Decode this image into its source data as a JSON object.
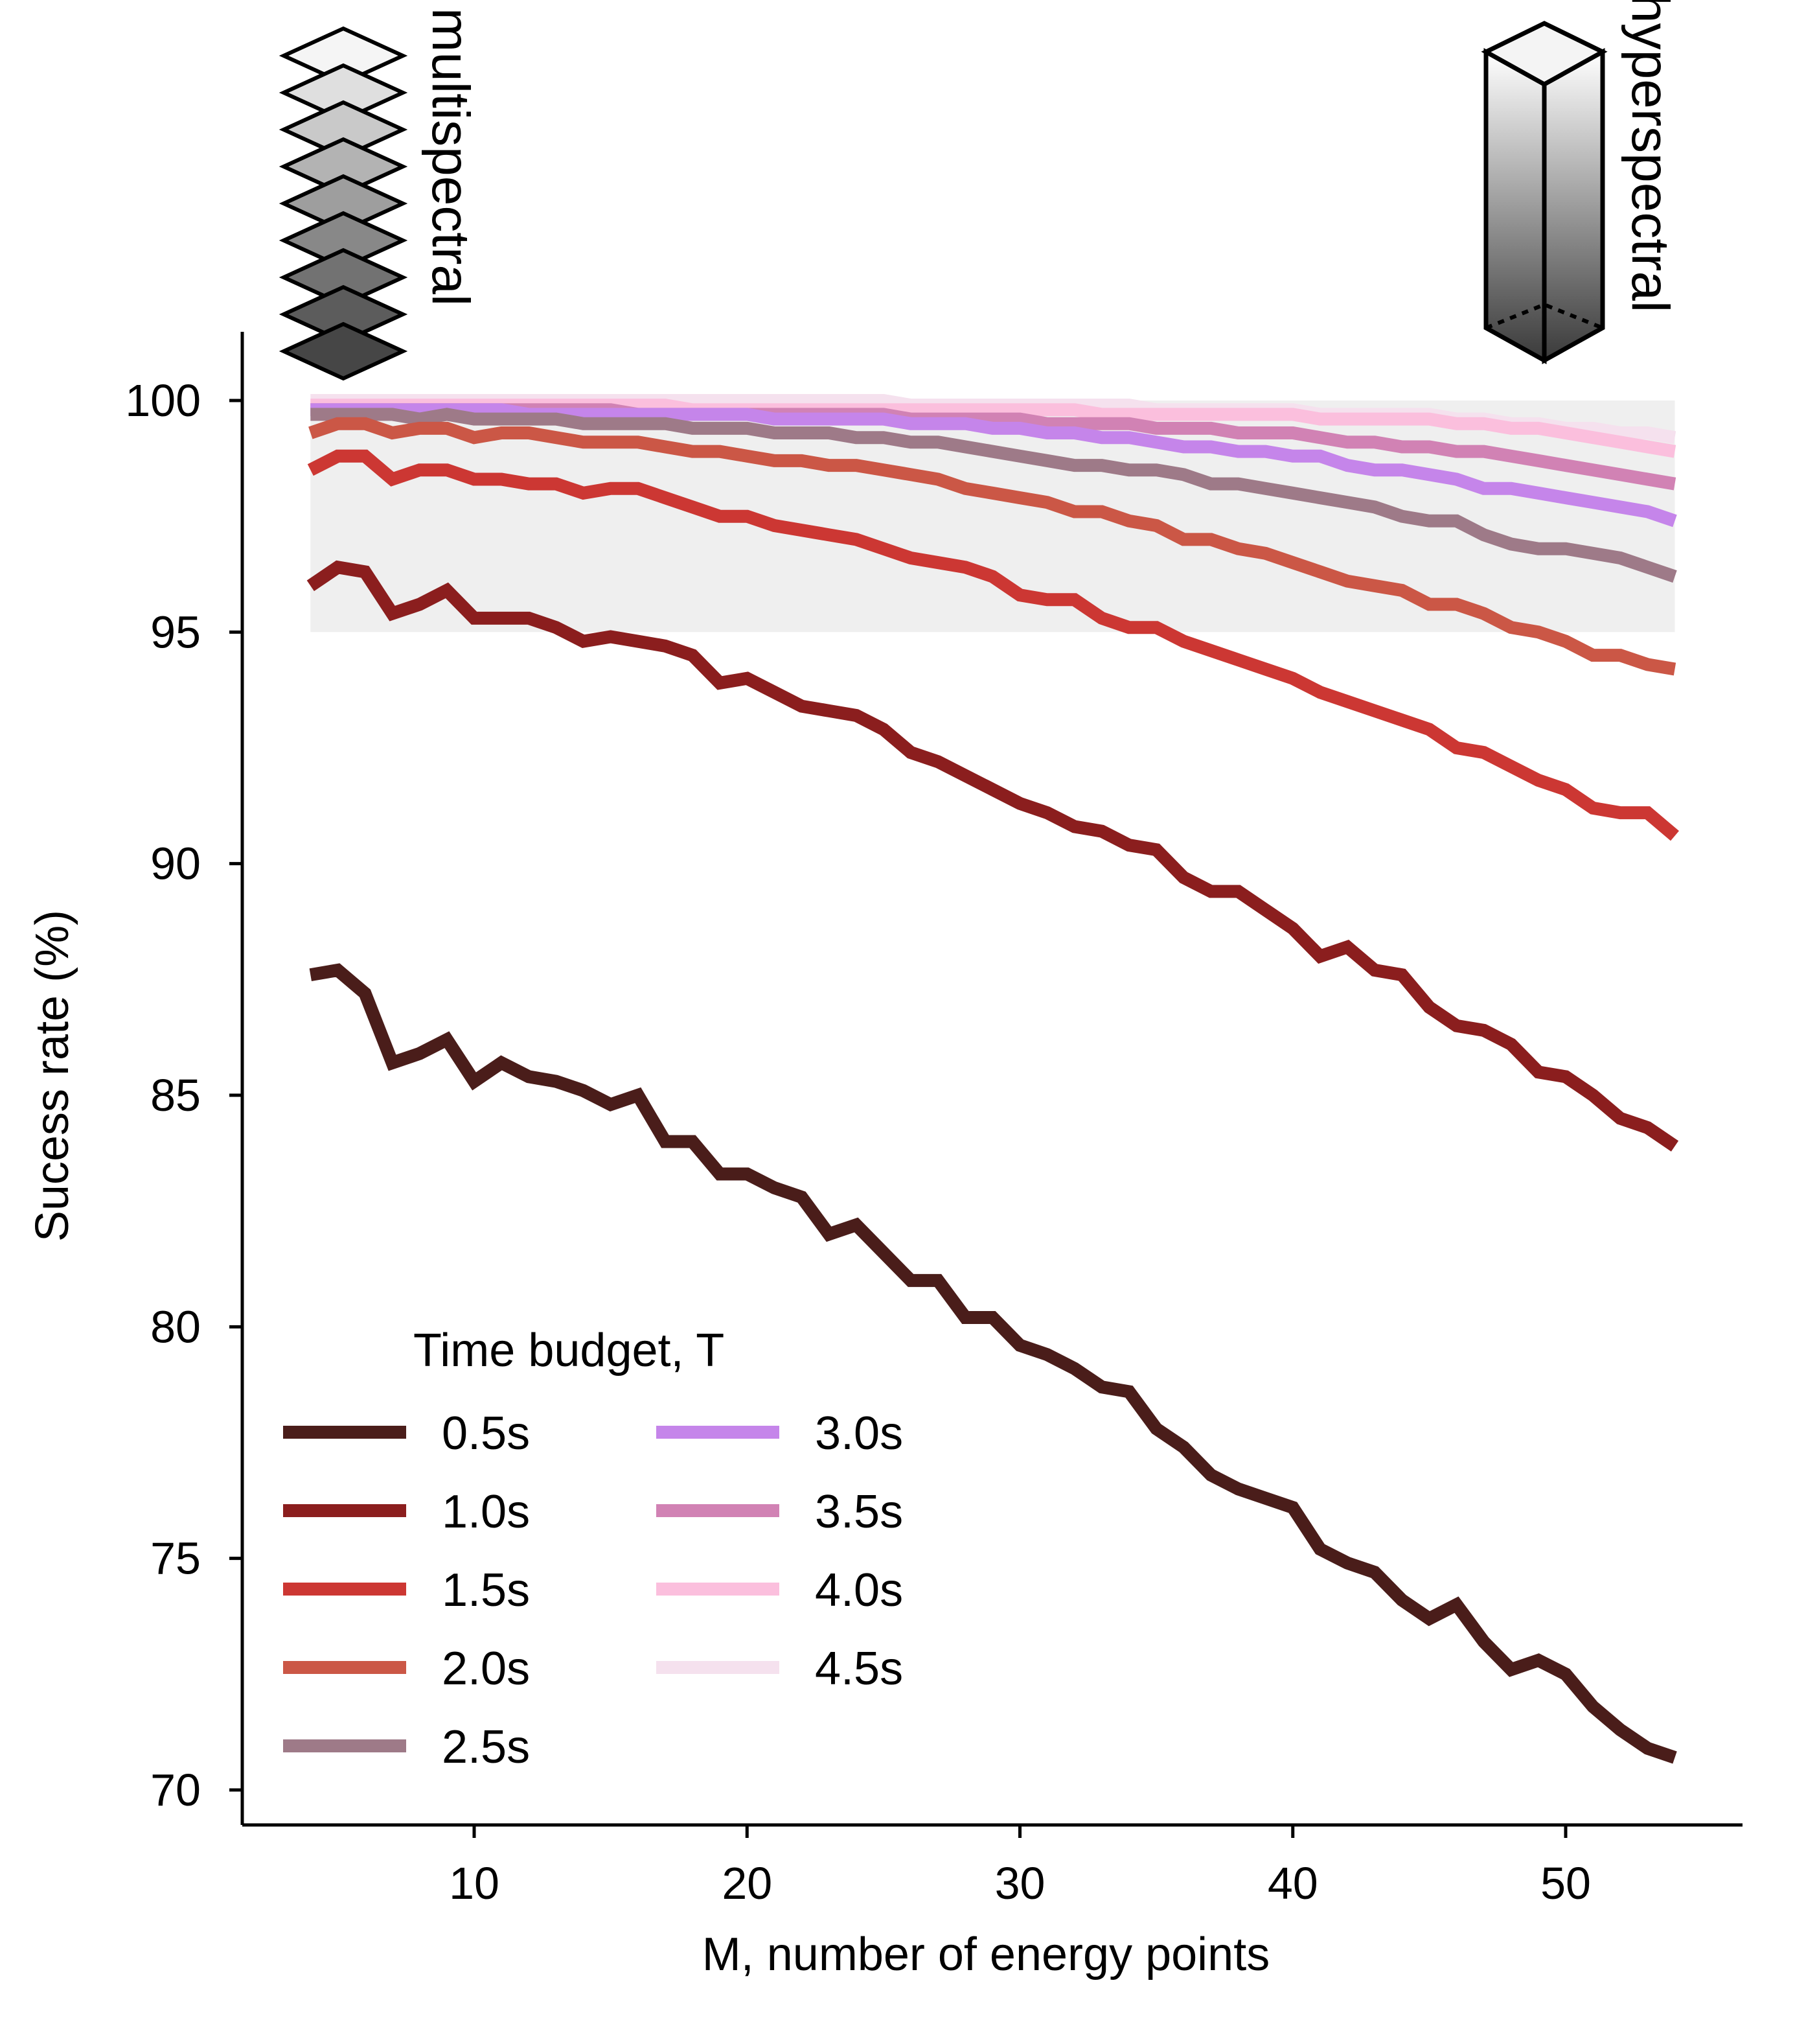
{
  "chart_data": {
    "type": "line",
    "xlabel": "M, number  of energy points",
    "ylabel": "Sucess rate  (%)",
    "xlim": [
      1.5,
      57
    ],
    "ylim": [
      69.3,
      101.5
    ],
    "xticks": [
      10,
      20,
      30,
      40,
      50
    ],
    "yticks": [
      70,
      75,
      80,
      85,
      90,
      95,
      100
    ],
    "grid": false,
    "shaded_band": {
      "y_from": 95,
      "y_to": 100,
      "color": "#efefef"
    },
    "annotations": {
      "left": "multispectral",
      "right": "hyperspectral"
    },
    "legend": {
      "title": "Time budget,  T",
      "placement": "bottom-left"
    },
    "x": [
      4,
      5,
      6,
      7,
      8,
      9,
      10,
      11,
      12,
      13,
      14,
      15,
      16,
      17,
      18,
      19,
      20,
      21,
      22,
      23,
      24,
      25,
      26,
      27,
      28,
      29,
      30,
      31,
      32,
      33,
      34,
      35,
      36,
      37,
      38,
      39,
      40,
      41,
      42,
      43,
      44,
      45,
      46,
      47,
      48,
      49,
      50,
      51,
      52,
      53,
      54
    ],
    "series": [
      {
        "name": "0.5s",
        "color": "#4a1d1a",
        "values": [
          87.6,
          87.7,
          87.2,
          85.7,
          85.9,
          86.2,
          85.3,
          85.7,
          85.4,
          85.3,
          85.1,
          84.8,
          85.0,
          84.0,
          84.0,
          83.3,
          83.3,
          83.0,
          82.8,
          82.0,
          82.2,
          81.6,
          81.0,
          81.0,
          80.2,
          80.2,
          79.6,
          79.4,
          79.1,
          78.7,
          78.6,
          77.8,
          77.4,
          76.8,
          76.5,
          76.3,
          76.1,
          75.2,
          74.9,
          74.7,
          74.1,
          73.7,
          74.0,
          73.2,
          72.6,
          72.8,
          72.5,
          71.8,
          71.3,
          70.9,
          70.7
        ]
      },
      {
        "name": "1.0s",
        "color": "#8b1e1e",
        "values": [
          96.0,
          96.4,
          96.3,
          95.4,
          95.6,
          95.9,
          95.3,
          95.3,
          95.3,
          95.1,
          94.8,
          94.9,
          94.8,
          94.7,
          94.5,
          93.9,
          94.0,
          93.7,
          93.4,
          93.3,
          93.2,
          92.9,
          92.4,
          92.2,
          91.9,
          91.6,
          91.3,
          91.1,
          90.8,
          90.7,
          90.4,
          90.3,
          89.7,
          89.4,
          89.4,
          89.0,
          88.6,
          88.0,
          88.2,
          87.7,
          87.6,
          86.9,
          86.5,
          86.4,
          86.1,
          85.5,
          85.4,
          85.0,
          84.5,
          84.3,
          83.9
        ]
      },
      {
        "name": "1.5s",
        "color": "#cc3733",
        "values": [
          98.5,
          98.8,
          98.8,
          98.3,
          98.5,
          98.5,
          98.3,
          98.3,
          98.2,
          98.2,
          98.0,
          98.1,
          98.1,
          97.9,
          97.7,
          97.5,
          97.5,
          97.3,
          97.2,
          97.1,
          97.0,
          96.8,
          96.6,
          96.5,
          96.4,
          96.2,
          95.8,
          95.7,
          95.7,
          95.3,
          95.1,
          95.1,
          94.8,
          94.6,
          94.4,
          94.2,
          94.0,
          93.7,
          93.5,
          93.3,
          93.1,
          92.9,
          92.5,
          92.4,
          92.1,
          91.8,
          91.6,
          91.2,
          91.1,
          91.1,
          90.6
        ]
      },
      {
        "name": "2.0s",
        "color": "#cb5746",
        "values": [
          99.3,
          99.5,
          99.5,
          99.3,
          99.4,
          99.4,
          99.2,
          99.3,
          99.3,
          99.2,
          99.1,
          99.1,
          99.1,
          99.0,
          98.9,
          98.9,
          98.8,
          98.7,
          98.7,
          98.6,
          98.6,
          98.5,
          98.4,
          98.3,
          98.1,
          98.0,
          97.9,
          97.8,
          97.6,
          97.6,
          97.4,
          97.3,
          97.0,
          97.0,
          96.8,
          96.7,
          96.5,
          96.3,
          96.1,
          96.0,
          95.9,
          95.6,
          95.6,
          95.4,
          95.1,
          95.0,
          94.8,
          94.5,
          94.5,
          94.3,
          94.2
        ]
      },
      {
        "name": "2.5s",
        "color": "#9e7a88",
        "values": [
          99.7,
          99.7,
          99.7,
          99.7,
          99.6,
          99.7,
          99.6,
          99.6,
          99.6,
          99.6,
          99.5,
          99.5,
          99.5,
          99.5,
          99.4,
          99.4,
          99.4,
          99.3,
          99.3,
          99.3,
          99.2,
          99.2,
          99.1,
          99.1,
          99.0,
          98.9,
          98.8,
          98.7,
          98.6,
          98.6,
          98.5,
          98.5,
          98.4,
          98.2,
          98.2,
          98.1,
          98.0,
          97.9,
          97.8,
          97.7,
          97.5,
          97.4,
          97.4,
          97.1,
          96.9,
          96.8,
          96.8,
          96.7,
          96.6,
          96.4,
          96.2
        ]
      },
      {
        "name": "3.0s",
        "color": "#c585ea",
        "values": [
          99.8,
          99.8,
          99.8,
          99.8,
          99.8,
          99.8,
          99.8,
          99.8,
          99.7,
          99.7,
          99.7,
          99.7,
          99.7,
          99.7,
          99.7,
          99.7,
          99.7,
          99.6,
          99.6,
          99.6,
          99.6,
          99.6,
          99.5,
          99.5,
          99.5,
          99.4,
          99.4,
          99.3,
          99.3,
          99.2,
          99.2,
          99.1,
          99.0,
          99.0,
          98.9,
          98.9,
          98.8,
          98.8,
          98.6,
          98.5,
          98.5,
          98.4,
          98.3,
          98.1,
          98.1,
          98.0,
          97.9,
          97.8,
          97.7,
          97.6,
          97.4
        ]
      },
      {
        "name": "3.5s",
        "color": "#d182b4",
        "values": [
          99.8,
          99.8,
          99.8,
          99.8,
          99.8,
          99.8,
          99.8,
          99.8,
          99.8,
          99.8,
          99.8,
          99.8,
          99.7,
          99.7,
          99.7,
          99.7,
          99.7,
          99.7,
          99.7,
          99.7,
          99.7,
          99.7,
          99.6,
          99.6,
          99.6,
          99.6,
          99.6,
          99.5,
          99.5,
          99.5,
          99.5,
          99.4,
          99.4,
          99.4,
          99.3,
          99.3,
          99.3,
          99.2,
          99.1,
          99.1,
          99.0,
          99.0,
          98.9,
          98.9,
          98.8,
          98.7,
          98.6,
          98.5,
          98.4,
          98.3,
          98.2
        ]
      },
      {
        "name": "4.0s",
        "color": "#fbbfdd",
        "values": [
          99.9,
          99.9,
          99.9,
          99.9,
          99.9,
          99.9,
          99.9,
          99.9,
          99.9,
          99.9,
          99.9,
          99.9,
          99.9,
          99.9,
          99.8,
          99.8,
          99.8,
          99.8,
          99.8,
          99.8,
          99.8,
          99.8,
          99.8,
          99.8,
          99.8,
          99.8,
          99.8,
          99.8,
          99.8,
          99.7,
          99.7,
          99.7,
          99.7,
          99.7,
          99.7,
          99.7,
          99.7,
          99.6,
          99.6,
          99.6,
          99.6,
          99.6,
          99.5,
          99.5,
          99.4,
          99.4,
          99.3,
          99.2,
          99.1,
          99.0,
          98.9
        ]
      },
      {
        "name": "4.5s",
        "color": "#f5e1ee",
        "values": [
          100.0,
          100.0,
          100.0,
          100.0,
          100.0,
          100.0,
          100.0,
          100.0,
          100.0,
          100.0,
          100.0,
          100.0,
          100.0,
          100.0,
          100.0,
          100.0,
          100.0,
          100.0,
          100.0,
          100.0,
          100.0,
          100.0,
          99.9,
          99.9,
          99.9,
          99.9,
          99.9,
          99.9,
          99.9,
          99.9,
          99.9,
          99.8,
          99.8,
          99.8,
          99.8,
          99.8,
          99.8,
          99.7,
          99.7,
          99.7,
          99.7,
          99.7,
          99.6,
          99.6,
          99.5,
          99.5,
          99.4,
          99.4,
          99.3,
          99.3,
          99.2
        ]
      }
    ]
  }
}
